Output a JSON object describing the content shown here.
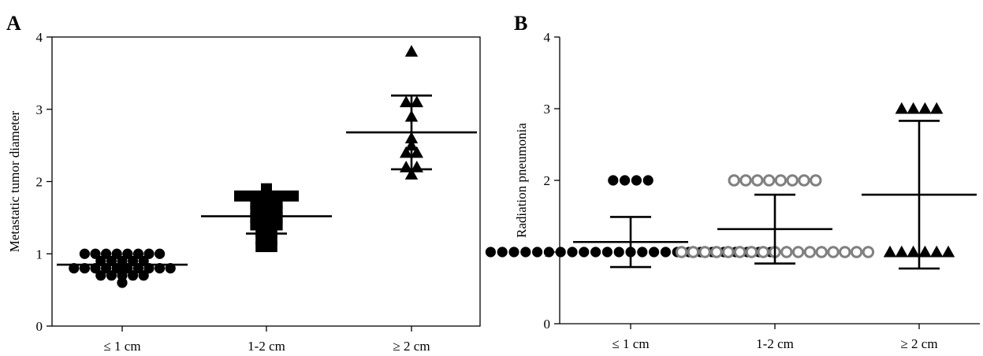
{
  "chart_data": [
    {
      "type": "scatter",
      "panel": "A",
      "title": "",
      "xlabel": "",
      "ylabel": "Metastatic tumor diameter",
      "ylim": [
        0,
        4
      ],
      "yticks": [
        0,
        1,
        2,
        3,
        4
      ],
      "categories": [
        "≤ 1 cm",
        "1-2 cm",
        "≥ 2 cm"
      ],
      "grid": false,
      "series": [
        {
          "marker": "circle",
          "color": "#000000",
          "values": [
            1.0,
            1.0,
            1.0,
            1.0,
            1.0,
            1.0,
            1.0,
            1.0,
            0.9,
            0.9,
            0.9,
            0.9,
            0.9,
            0.8,
            0.8,
            0.8,
            0.8,
            0.8,
            0.8,
            0.8,
            0.8,
            0.8,
            0.8,
            0.7,
            0.7,
            0.7,
            0.7,
            0.7,
            0.6
          ],
          "mean": 0.85,
          "sd": 0.1
        },
        {
          "marker": "square",
          "color": "#000000",
          "values": [
            1.9,
            1.8,
            1.8,
            1.8,
            1.8,
            1.8,
            1.8,
            1.7,
            1.7,
            1.7,
            1.6,
            1.6,
            1.6,
            1.5,
            1.5,
            1.5,
            1.4,
            1.4,
            1.4,
            1.3,
            1.3,
            1.2,
            1.2,
            1.1,
            1.1
          ],
          "mean": 1.52,
          "sd": 0.24
        },
        {
          "marker": "triangle",
          "color": "#000000",
          "values": [
            3.8,
            3.1,
            3.1,
            2.9,
            2.6,
            2.5,
            2.4,
            2.4,
            2.2,
            2.2,
            2.1
          ],
          "mean": 2.68,
          "sd": 0.51
        }
      ]
    },
    {
      "type": "scatter",
      "panel": "B",
      "title": "",
      "xlabel": "",
      "ylabel": "Radiation pneumonia",
      "ylim": [
        0,
        4
      ],
      "yticks": [
        0,
        1,
        2,
        3,
        4
      ],
      "categories": [
        "≤ 1 cm",
        "1-2 cm",
        "≥ 2 cm"
      ],
      "grid": false,
      "series": [
        {
          "marker": "circle",
          "color": "#000000",
          "values": [
            2,
            2,
            2,
            2,
            1,
            1,
            1,
            1,
            1,
            1,
            1,
            1,
            1,
            1,
            1,
            1,
            1,
            1,
            1,
            1,
            1,
            1,
            1,
            1,
            1,
            1,
            1,
            1,
            1
          ],
          "mean": 1.14,
          "sd": 0.35
        },
        {
          "marker": "open-circle",
          "color": "#808080",
          "values": [
            2,
            2,
            2,
            2,
            2,
            2,
            2,
            2,
            1,
            1,
            1,
            1,
            1,
            1,
            1,
            1,
            1,
            1,
            1,
            1,
            1,
            1,
            1,
            1,
            1
          ],
          "mean": 1.32,
          "sd": 0.48
        },
        {
          "marker": "triangle",
          "color": "#000000",
          "values": [
            3,
            3,
            3,
            3,
            1,
            1,
            1,
            1,
            1,
            1
          ],
          "mean": 1.8,
          "sd": 1.03
        }
      ]
    }
  ],
  "panel_labels": [
    "A",
    "B"
  ]
}
